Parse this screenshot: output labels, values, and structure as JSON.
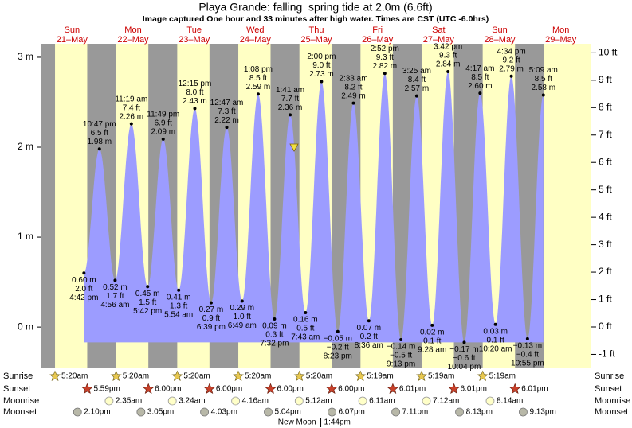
{
  "chart_data": {
    "type": "tide",
    "title": "Playa Grande: falling  spring tide at 2.0m (6.6ft)",
    "subtitle": "Image captured One hour and 33 minutes after high water. Times are CST (UTC -6.0hrs)",
    "days": [
      {
        "weekday": "Sun",
        "date": "21–May"
      },
      {
        "weekday": "Mon",
        "date": "22–May"
      },
      {
        "weekday": "Tue",
        "date": "23–May"
      },
      {
        "weekday": "Wed",
        "date": "24–May"
      },
      {
        "weekday": "Thu",
        "date": "25–May"
      },
      {
        "weekday": "Fri",
        "date": "26–May"
      },
      {
        "weekday": "Sat",
        "date": "27–May"
      },
      {
        "weekday": "Sun",
        "date": "28–May"
      },
      {
        "weekday": "Mon",
        "date": "29–May"
      }
    ],
    "xlim": [
      0,
      216
    ],
    "ylim": [
      -0.45,
      3.15
    ],
    "yticks": [
      {
        "value": 0,
        "label": "0 m"
      },
      {
        "value": 1,
        "label": "1 m"
      },
      {
        "value": 2,
        "label": "2 m"
      },
      {
        "value": 3,
        "label": "3 m"
      }
    ],
    "y2lim": [
      -1.48,
      10.33
    ],
    "y2ticks": [
      {
        "value": -1,
        "label": "-1 ft"
      },
      {
        "value": 0,
        "label": "0 ft"
      },
      {
        "value": 1,
        "label": "1 ft"
      },
      {
        "value": 2,
        "label": "2 ft"
      },
      {
        "value": 3,
        "label": "3 ft"
      },
      {
        "value": 4,
        "label": "4 ft"
      },
      {
        "value": 5,
        "label": "5 ft"
      },
      {
        "value": 6,
        "label": "6 ft"
      },
      {
        "value": 7,
        "label": "7 ft"
      },
      {
        "value": 8,
        "label": "8 ft"
      },
      {
        "value": 9,
        "label": "9 ft"
      },
      {
        "value": 10,
        "label": "10 ft"
      }
    ],
    "tide_color": "#9c9cff",
    "day_color": "#ffffc4",
    "night_color": "#999999",
    "extremes": [
      {
        "day": 0,
        "time": "4:42 pm",
        "m": 0.6,
        "m_label": "0.60 m",
        "ft_label": "2.0 ft"
      },
      {
        "day": 0,
        "time": "10:47 pm",
        "m": 1.98,
        "m_label": "1.98 m",
        "ft_label": "6.5 ft"
      },
      {
        "day": 1,
        "time": "4:56 am",
        "m": 0.52,
        "m_label": "0.52 m",
        "ft_label": "1.7 ft"
      },
      {
        "day": 1,
        "time": "11:19 am",
        "m": 2.26,
        "m_label": "2.26 m",
        "ft_label": "7.4 ft"
      },
      {
        "day": 1,
        "time": "5:42 pm",
        "m": 0.45,
        "m_label": "0.45 m",
        "ft_label": "1.5 ft"
      },
      {
        "day": 1,
        "time": "11:49 pm",
        "m": 2.09,
        "m_label": "2.09 m",
        "ft_label": "6.9 ft"
      },
      {
        "day": 2,
        "time": "5:54 am",
        "m": 0.41,
        "m_label": "0.41 m",
        "ft_label": "1.3 ft"
      },
      {
        "day": 2,
        "time": "12:15 pm",
        "m": 2.43,
        "m_label": "2.43 m",
        "ft_label": "8.0 ft"
      },
      {
        "day": 2,
        "time": "6:39 pm",
        "m": 0.27,
        "m_label": "0.27 m",
        "ft_label": "0.9 ft"
      },
      {
        "day": 3,
        "time": "12:47 am",
        "m": 2.22,
        "m_label": "2.22 m",
        "ft_label": "7.3 ft"
      },
      {
        "day": 3,
        "time": "6:49 am",
        "m": 0.29,
        "m_label": "0.29 m",
        "ft_label": "1.0 ft"
      },
      {
        "day": 3,
        "time": "1:08 pm",
        "m": 2.59,
        "m_label": "2.59 m",
        "ft_label": "8.5 ft"
      },
      {
        "day": 3,
        "time": "7:32 pm",
        "m": 0.09,
        "m_label": "0.09 m",
        "ft_label": "0.3 ft"
      },
      {
        "day": 4,
        "time": "1:41 am",
        "m": 2.36,
        "m_label": "2.36 m",
        "ft_label": "7.7 ft"
      },
      {
        "day": 4,
        "time": "7:43 am",
        "m": 0.16,
        "m_label": "0.16 m",
        "ft_label": "0.5 ft"
      },
      {
        "day": 4,
        "time": "2:00 pm",
        "m": 2.73,
        "m_label": "2.73 m",
        "ft_label": "9.0 ft"
      },
      {
        "day": 4,
        "time": "8:23 pm",
        "m": -0.05,
        "m_label": "−0.05 m",
        "ft_label": "−0.2 ft"
      },
      {
        "day": 5,
        "time": "2:33 am",
        "m": 2.49,
        "m_label": "2.49 m",
        "ft_label": "8.2 ft"
      },
      {
        "day": 5,
        "time": "8:36 am",
        "m": 0.07,
        "m_label": "0.07 m",
        "ft_label": "0.2 ft"
      },
      {
        "day": 5,
        "time": "2:52 pm",
        "m": 2.82,
        "m_label": "2.82 m",
        "ft_label": "9.3 ft"
      },
      {
        "day": 5,
        "time": "9:13 pm",
        "m": -0.14,
        "m_label": "−0.14 m",
        "ft_label": "−0.5 ft"
      },
      {
        "day": 6,
        "time": "3:25 am",
        "m": 2.57,
        "m_label": "2.57 m",
        "ft_label": "8.4 ft"
      },
      {
        "day": 6,
        "time": "9:28 am",
        "m": 0.02,
        "m_label": "0.02 m",
        "ft_label": "0.1 ft"
      },
      {
        "day": 6,
        "time": "3:42 pm",
        "m": 2.84,
        "m_label": "2.84 m",
        "ft_label": "9.3 ft"
      },
      {
        "day": 6,
        "time": "10:04 pm",
        "m": -0.17,
        "m_label": "−0.17 m",
        "ft_label": "−0.6 ft"
      },
      {
        "day": 7,
        "time": "4:17 am",
        "m": 2.6,
        "m_label": "2.60 m",
        "ft_label": "8.5 ft"
      },
      {
        "day": 7,
        "time": "10:20 am",
        "m": 0.03,
        "m_label": "0.03 m",
        "ft_label": "0.1 ft"
      },
      {
        "day": 7,
        "time": "4:34 pm",
        "m": 2.79,
        "m_label": "2.79 m",
        "ft_label": "9.2 ft"
      },
      {
        "day": 7,
        "time": "10:55 pm",
        "m": -0.13,
        "m_label": "−0.13 m",
        "ft_label": "−0.4 ft"
      },
      {
        "day": 8,
        "time": "5:09 am",
        "m": 2.58,
        "m_label": "2.58 m",
        "ft_label": "8.5 ft"
      }
    ],
    "current": {
      "x": 99.23,
      "value": 2.0
    },
    "rows": [
      {
        "label": "Sunrise",
        "icon": "sunrise",
        "events": [
          {
            "day": 0,
            "time": "5:20am"
          },
          {
            "day": 1,
            "time": "5:20am"
          },
          {
            "day": 2,
            "time": "5:20am"
          },
          {
            "day": 3,
            "time": "5:20am"
          },
          {
            "day": 4,
            "time": "5:20am"
          },
          {
            "day": 5,
            "time": "5:19am"
          },
          {
            "day": 6,
            "time": "5:19am"
          },
          {
            "day": 7,
            "time": "5:19am"
          }
        ]
      },
      {
        "label": "Sunset",
        "icon": "sunset",
        "events": [
          {
            "day": 0,
            "time": "5:59pm"
          },
          {
            "day": 1,
            "time": "6:00pm"
          },
          {
            "day": 2,
            "time": "6:00pm"
          },
          {
            "day": 3,
            "time": "6:00pm"
          },
          {
            "day": 4,
            "time": "6:00pm"
          },
          {
            "day": 5,
            "time": "6:01pm"
          },
          {
            "day": 6,
            "time": "6:01pm"
          },
          {
            "day": 7,
            "time": "6:01pm"
          }
        ]
      },
      {
        "label": "Moonrise",
        "icon": "moonrise",
        "events": [
          {
            "day": 1,
            "time": "2:35am"
          },
          {
            "day": 2,
            "time": "3:24am"
          },
          {
            "day": 3,
            "time": "4:16am"
          },
          {
            "day": 4,
            "time": "5:12am"
          },
          {
            "day": 5,
            "time": "6:11am"
          },
          {
            "day": 6,
            "time": "7:12am"
          },
          {
            "day": 7,
            "time": "8:14am"
          }
        ]
      },
      {
        "label": "Moonset",
        "icon": "moonset",
        "events": [
          {
            "day": 0,
            "time": "2:10pm"
          },
          {
            "day": 1,
            "time": "3:05pm"
          },
          {
            "day": 2,
            "time": "4:03pm"
          },
          {
            "day": 3,
            "time": "5:04pm"
          },
          {
            "day": 4,
            "time": "6:07pm"
          },
          {
            "day": 5,
            "time": "7:11pm"
          },
          {
            "day": 6,
            "time": "8:13pm"
          },
          {
            "day": 7,
            "time": "9:13pm"
          }
        ]
      }
    ],
    "moon_phase": {
      "label": "New Moon",
      "day": 4,
      "time": "1:44pm"
    }
  }
}
